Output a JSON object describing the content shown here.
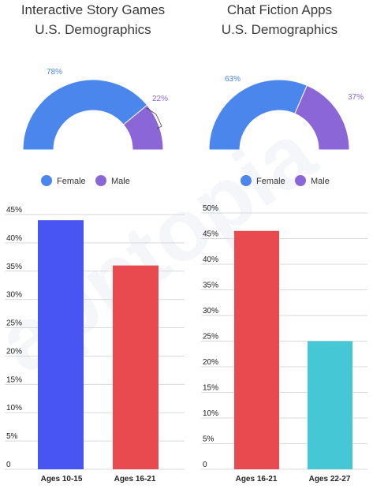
{
  "panels": [
    {
      "title_line1": "Interactive Story Games",
      "title_line2": "U.S. Demographics"
    },
    {
      "title_line1": "Chat Fiction Apps",
      "title_line2": "U.S. Demographics"
    }
  ],
  "watermark": "apptopia",
  "colors": {
    "female": "#4a86ec",
    "male": "#8a66d6",
    "bar_blue": "#4955f2",
    "bar_red": "#e84a4f",
    "bar_teal": "#45c7d6",
    "grid": "#d9d9d9"
  },
  "chart_data": [
    {
      "type": "pie",
      "subtype": "half-donut",
      "categories": [
        "Female",
        "Male"
      ],
      "values": [
        78,
        22
      ],
      "labels": [
        "78%",
        "22%"
      ],
      "legend": [
        "Female",
        "Male"
      ]
    },
    {
      "type": "pie",
      "subtype": "half-donut",
      "categories": [
        "Female",
        "Male"
      ],
      "values": [
        63,
        37
      ],
      "labels": [
        "63%",
        "37%"
      ],
      "legend": [
        "Female",
        "Male"
      ]
    },
    {
      "type": "bar",
      "categories": [
        "Ages 10-15",
        "Ages 16-21"
      ],
      "values": [
        44,
        36
      ],
      "ylim": [
        0,
        45
      ],
      "yticks": [
        "0",
        "5%",
        "10%",
        "15%",
        "20%",
        "25%",
        "30%",
        "35%",
        "40%",
        "45%"
      ],
      "grid": true
    },
    {
      "type": "bar",
      "categories": [
        "Ages 16-21",
        "Ages 22-27"
      ],
      "values": [
        46.5,
        25
      ],
      "ylim": [
        0,
        50
      ],
      "yticks": [
        "0",
        "5%",
        "10%",
        "15%",
        "20%",
        "25%",
        "30%",
        "35%",
        "40%",
        "45%",
        "50%"
      ],
      "grid": true
    }
  ]
}
